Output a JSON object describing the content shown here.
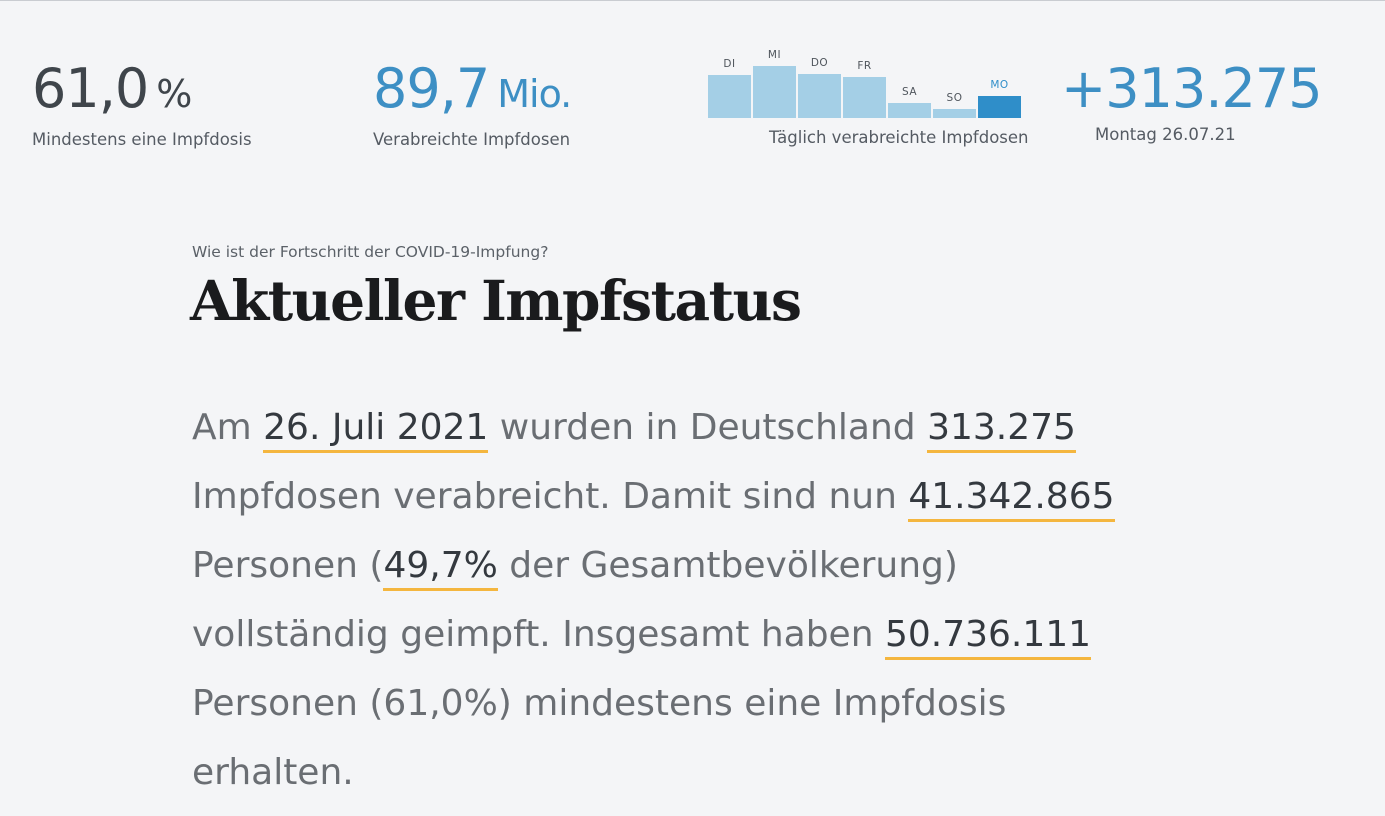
{
  "stats": {
    "first_dose": {
      "value": "61,0",
      "unit": "%",
      "label": "Mindestens eine Impfdosis"
    },
    "total_doses": {
      "value": "89,7",
      "unit": "Mio.",
      "label": "Verabreichte Impfdosen"
    },
    "daily": {
      "label": "Täglich verabreichte Impfdosen"
    },
    "today": {
      "value": "+313.275",
      "label": "Montag 26.07.21"
    }
  },
  "chart_data": {
    "type": "bar",
    "categories": [
      "DI",
      "MI",
      "DO",
      "FR",
      "SA",
      "SO",
      "MO"
    ],
    "values": [
      0.82,
      1.0,
      0.84,
      0.79,
      0.28,
      0.17,
      0.42
    ],
    "highlight_index": 6,
    "xlabel": "Täglich verabreichte Impfdosen",
    "grid": false
  },
  "article": {
    "kicker": "Wie ist der Fortschritt der COVID-19-Impfung?",
    "headline": "Aktueller Impfstatus",
    "summary": {
      "t1": "Am ",
      "date": "26. Juli 2021",
      "t2": " wurden in Deutschland ",
      "doses_today": "313.275",
      "t3": " Impfdosen verabreicht. Damit sind nun ",
      "fully_vaccinated": "41.342.865",
      "t4": " Personen (",
      "fully_pct": "49,7%",
      "t5": " der Gesamtbevölkerung) vollständig geimpft. Insgesamt haben ",
      "at_least_one": "50.736.111",
      "t6": " Personen (61,0%) mindestens eine Impfdosis erhalten."
    }
  },
  "colors": {
    "background": "#f4f5f7",
    "accent_blue": "#3d8fc4",
    "bar_light": "#a4cfe6",
    "bar_active": "#2f8ec9",
    "underline_yellow": "#f4b63f"
  }
}
